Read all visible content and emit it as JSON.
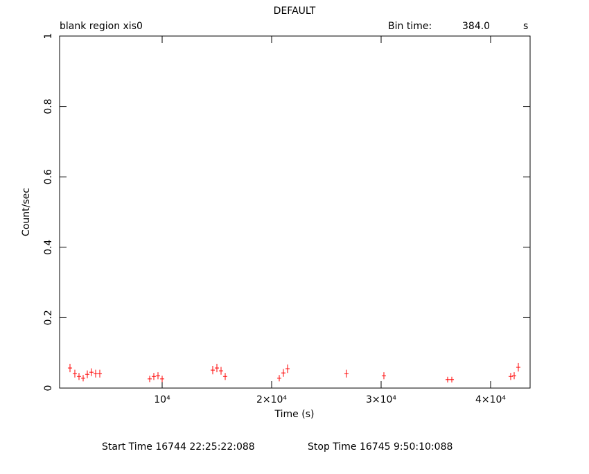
{
  "chart_data": {
    "type": "scatter",
    "title": "DEFAULT",
    "subtitle_left": "blank region  xis0",
    "bin_time_label": "Bin time:",
    "bin_time": {
      "value": 384,
      "label": "384.0"
    },
    "bin_time_unit": "s",
    "x_label": "Time (s)",
    "y_label": "Count/sec",
    "start_time": "Start Time 16744 22:25:22:088",
    "stop_time": "Stop Time 16745  9:50:10:088",
    "xlim": [
      633,
      43608
    ],
    "ylim": [
      0,
      1
    ],
    "xticks": [
      {
        "value": 10000,
        "label": "10⁴"
      },
      {
        "value": 20000,
        "label": "2×10⁴"
      },
      {
        "value": 30000,
        "label": "3×10⁴"
      },
      {
        "value": 40000,
        "label": "4×10⁴"
      }
    ],
    "yticks": [
      0,
      0.2,
      0.4,
      0.6,
      0.8,
      1
    ],
    "color": "#ff0000",
    "x": [
      1582,
      2025,
      2405,
      2785,
      3165,
      3544,
      3924,
      4304,
      8861,
      9241,
      9620,
      10000,
      14620,
      15000,
      15380,
      15759,
      20696,
      21076,
      21456,
      26835,
      30253,
      36076,
      36456,
      41835,
      42152,
      42532
    ],
    "values": [
      0.057,
      0.041,
      0.033,
      0.028,
      0.039,
      0.045,
      0.041,
      0.041,
      0.026,
      0.033,
      0.035,
      0.026,
      0.051,
      0.057,
      0.049,
      0.033,
      0.028,
      0.043,
      0.055,
      0.041,
      0.035,
      0.024,
      0.024,
      0.033,
      0.035,
      0.059
    ],
    "yerr": [
      0.012,
      0.011,
      0.01,
      0.009,
      0.011,
      0.011,
      0.011,
      0.011,
      0.009,
      0.01,
      0.01,
      0.009,
      0.012,
      0.012,
      0.011,
      0.01,
      0.009,
      0.011,
      0.012,
      0.011,
      0.01,
      0.008,
      0.008,
      0.01,
      0.01,
      0.012
    ]
  }
}
